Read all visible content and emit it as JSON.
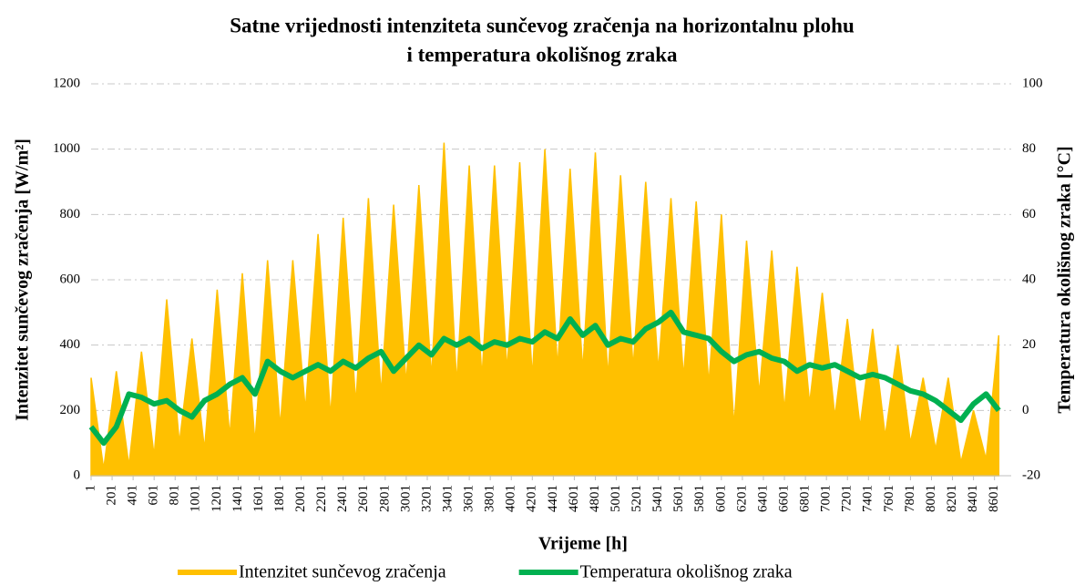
{
  "chart_data": {
    "type": "line",
    "title": [
      "Satne vrijednosti intenziteta sunčevog zračenja na horizontalnu plohu",
      "i temperatura okolišnog zraka"
    ],
    "x_label": "Vrijeme [h]",
    "y_label": "Intenzitet sunčevog zračenja  [W/m²]",
    "y2_label": "Temperatura okolišnog zraka [°C]",
    "x": [
      1,
      121,
      241,
      361,
      481,
      601,
      721,
      841,
      961,
      1081,
      1201,
      1321,
      1441,
      1561,
      1681,
      1801,
      1921,
      2041,
      2161,
      2281,
      2401,
      2521,
      2641,
      2761,
      2881,
      3001,
      3121,
      3241,
      3361,
      3481,
      3601,
      3721,
      3841,
      3961,
      4081,
      4201,
      4321,
      4441,
      4561,
      4681,
      4801,
      4921,
      5041,
      5161,
      5281,
      5401,
      5521,
      5641,
      5761,
      5881,
      6001,
      6121,
      6241,
      6361,
      6481,
      6601,
      6721,
      6841,
      6961,
      7081,
      7201,
      7321,
      7441,
      7561,
      7681,
      7801,
      7921,
      8041,
      8161,
      8281,
      8401,
      8521,
      8641
    ],
    "series": [
      {
        "name": "Intenzitet sunčevog zračenja",
        "color": "#ffc000",
        "axis": "y",
        "values": [
          300,
          20,
          320,
          30,
          380,
          60,
          540,
          100,
          420,
          80,
          570,
          120,
          620,
          100,
          660,
          150,
          660,
          200,
          740,
          180,
          790,
          220,
          850,
          250,
          830,
          280,
          890,
          300,
          1020,
          280,
          950,
          300,
          950,
          320,
          960,
          300,
          1000,
          330,
          940,
          320,
          990,
          300,
          920,
          330,
          900,
          320,
          850,
          300,
          840,
          280,
          800,
          150,
          720,
          250,
          690,
          200,
          640,
          220,
          560,
          180,
          480,
          150,
          450,
          120,
          400,
          100,
          300,
          80,
          300,
          40,
          200,
          50,
          430
        ]
      },
      {
        "name": "Temperatura okolišnog zraka",
        "color": "#00b050",
        "axis": "y2",
        "values": [
          -5,
          -10,
          -5,
          5,
          4,
          2,
          3,
          0,
          -2,
          3,
          5,
          8,
          10,
          5,
          15,
          12,
          10,
          12,
          14,
          12,
          15,
          13,
          16,
          18,
          12,
          16,
          20,
          17,
          22,
          20,
          22,
          19,
          21,
          20,
          22,
          21,
          24,
          22,
          28,
          23,
          26,
          20,
          22,
          21,
          25,
          27,
          30,
          24,
          23,
          22,
          18,
          15,
          17,
          18,
          16,
          15,
          12,
          14,
          13,
          14,
          12,
          10,
          11,
          10,
          8,
          6,
          5,
          3,
          0,
          -3,
          2,
          5,
          0
        ]
      }
    ],
    "xlim": [
      1,
      8760
    ],
    "xticks": [
      1,
      201,
      401,
      601,
      801,
      1001,
      1201,
      1401,
      1601,
      1801,
      2001,
      2201,
      2401,
      2601,
      2801,
      3001,
      3201,
      3401,
      3601,
      3801,
      4001,
      4201,
      4401,
      4601,
      4801,
      5001,
      5201,
      5401,
      5601,
      5801,
      6001,
      6201,
      6401,
      6601,
      6801,
      7001,
      7201,
      7401,
      7601,
      7801,
      8001,
      8201,
      8401,
      8601
    ],
    "ylim": [
      0,
      1200
    ],
    "yticks": [
      0,
      200,
      400,
      600,
      800,
      1000,
      1200
    ],
    "y2lim": [
      -20,
      100
    ],
    "y2ticks": [
      -20,
      0,
      20,
      40,
      60,
      80,
      100
    ],
    "grid": true,
    "legend": "bottom"
  }
}
